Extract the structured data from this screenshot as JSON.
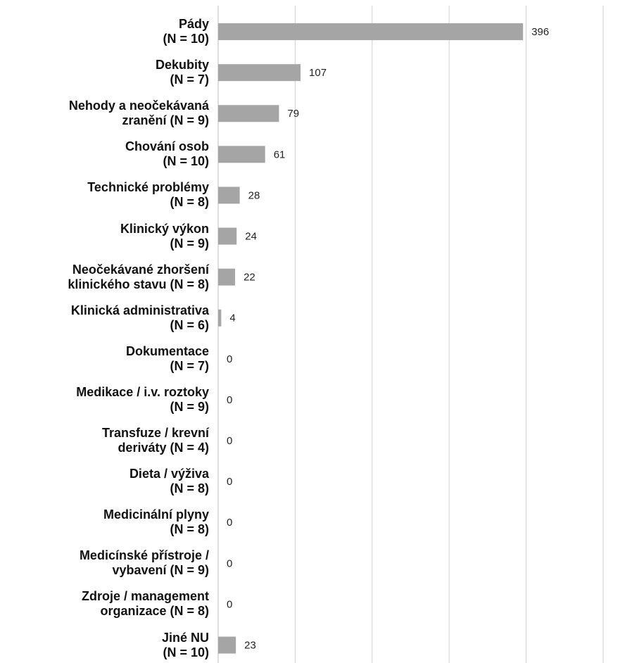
{
  "chart_data": {
    "type": "barh",
    "categories": [
      "Pády\n(N = 10)",
      "Dekubity\n(N = 7)",
      "Nehody a neočekávaná\nzranění (N = 9)",
      "Chování osob\n(N = 10)",
      "Technické problémy\n(N = 8)",
      "Klinický výkon\n(N = 9)",
      "Neočekávané zhoršení\nklinického stavu (N = 8)",
      "Klinická administrativa\n(N = 6)",
      "Dokumentace\n(N = 7)",
      "Medikace / i.v. roztoky\n(N = 9)",
      "Transfuze / krevní\nderiváty (N = 4)",
      "Dieta / výživa\n(N = 8)",
      "Medicinální plyny\n(N = 8)",
      "Medicínské přístroje /\nvybavení (N = 9)",
      "Zdroje / management\norganizace (N = 8)",
      "Jiné NU\n(N = 10)"
    ],
    "values": [
      396,
      107,
      79,
      61,
      28,
      24,
      22,
      4,
      0,
      0,
      0,
      0,
      0,
      0,
      0,
      23
    ],
    "color": "#a5a5a5",
    "xlim": [
      0,
      500
    ],
    "xticks": [
      0,
      100,
      200,
      300,
      400,
      500
    ],
    "grid": true
  }
}
